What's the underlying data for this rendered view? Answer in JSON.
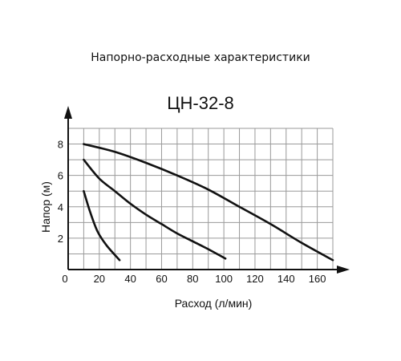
{
  "heading": "Напорно-расходные характеристики",
  "chart_data": {
    "type": "line",
    "title": "ЦН-32-8",
    "xlabel": "Расход (л/мин)",
    "ylabel": "Напор (м)",
    "xlim": [
      0,
      170
    ],
    "ylim": [
      0,
      9
    ],
    "x_ticks": [
      0,
      20,
      40,
      60,
      80,
      100,
      120,
      140,
      160
    ],
    "x_tick_labels": [
      "0",
      "20",
      "40",
      "60",
      "80",
      "100",
      "120",
      "140",
      "160"
    ],
    "y_ticks": [
      2,
      4,
      6,
      8
    ],
    "y_tick_labels": [
      "2",
      "4",
      "6",
      "8"
    ],
    "grid": true,
    "x_grid_step": 10,
    "y_grid_step": 1,
    "series": [
      {
        "points": [
          [
            10,
            5.0
          ],
          [
            14,
            3.7
          ],
          [
            19,
            2.4
          ],
          [
            25,
            1.5
          ],
          [
            33,
            0.6
          ]
        ]
      },
      {
        "points": [
          [
            10,
            7.0
          ],
          [
            20,
            5.8
          ],
          [
            30,
            5.0
          ],
          [
            40,
            4.2
          ],
          [
            50,
            3.5
          ],
          [
            60,
            2.9
          ],
          [
            70,
            2.3
          ],
          [
            80,
            1.8
          ],
          [
            90,
            1.3
          ],
          [
            101,
            0.7
          ]
        ]
      },
      {
        "points": [
          [
            10,
            8.0
          ],
          [
            30,
            7.5
          ],
          [
            50,
            6.8
          ],
          [
            70,
            6.0
          ],
          [
            90,
            5.1
          ],
          [
            110,
            4.0
          ],
          [
            130,
            2.9
          ],
          [
            150,
            1.7
          ],
          [
            170,
            0.6
          ]
        ]
      }
    ],
    "colors": {
      "line": "#111111",
      "grid": "#9a9a9a"
    }
  }
}
